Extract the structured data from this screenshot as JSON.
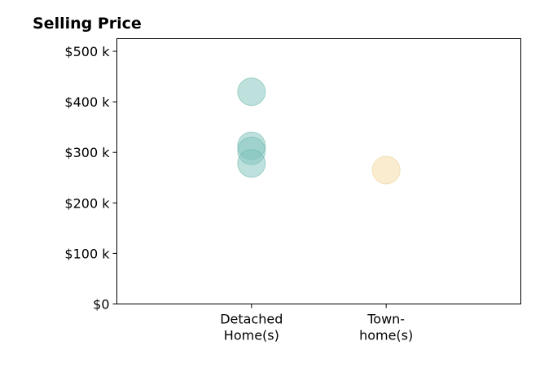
{
  "chart_data": {
    "type": "scatter",
    "title": "Selling Price",
    "xlabel": "",
    "ylabel": "",
    "categories": [
      [
        "Detached",
        "Home(s)"
      ],
      [
        "Town-",
        "home(s)"
      ]
    ],
    "ylim": [
      0,
      525000
    ],
    "xlim": [
      -1,
      2
    ],
    "y_ticks": [
      0,
      100000,
      200000,
      300000,
      400000,
      500000
    ],
    "y_tick_labels": [
      "$0",
      "$100 k",
      "$200 k",
      "$300 k",
      "$400 k",
      "$500 k"
    ],
    "grid": false,
    "legend": "none",
    "series": [
      {
        "category_index": 0,
        "color": "#7fc4bb",
        "stroke": "#5fb0a6",
        "opacity": 0.5,
        "values": [
          420000,
          313000,
          303000,
          278000
        ]
      },
      {
        "category_index": 1,
        "color": "#f6dca8",
        "stroke": "#eccd8e",
        "opacity": 0.55,
        "values": [
          265000
        ]
      }
    ]
  }
}
